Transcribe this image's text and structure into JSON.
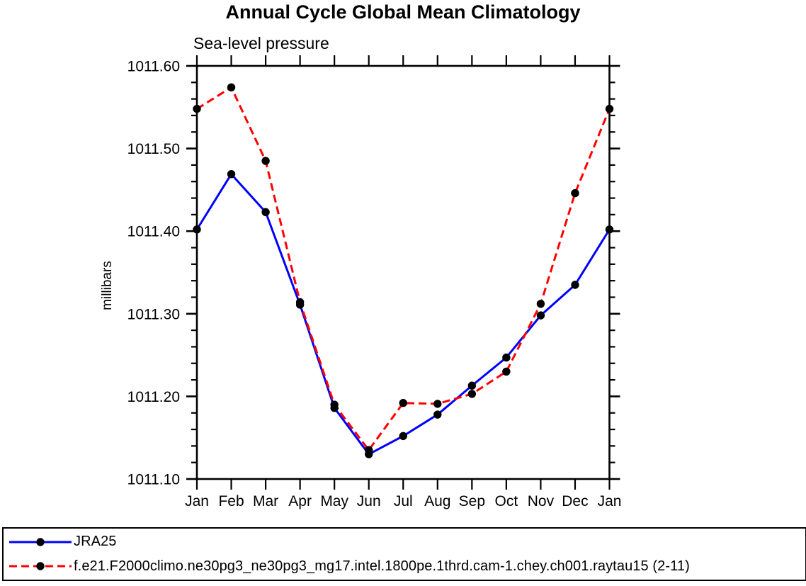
{
  "chart_data": {
    "type": "line",
    "title": "Annual Cycle Global Mean Climatology",
    "subtitle": "Sea-level pressure",
    "ylabel": "millibars",
    "x_categories": [
      "Jan",
      "Feb",
      "Mar",
      "Apr",
      "May",
      "Jun",
      "Jul",
      "Aug",
      "Sep",
      "Oct",
      "Nov",
      "Dec",
      "Jan"
    ],
    "ylim": [
      1011.1,
      1011.6
    ],
    "y_major_step": 0.1,
    "y_minor_step": 0.02,
    "y_tick_labels": [
      "1011.10",
      "1011.20",
      "1011.30",
      "1011.40",
      "1011.50",
      "1011.60"
    ],
    "grid": false,
    "legend_position": "bottom-outside-box",
    "axis_color": "#000000",
    "series": [
      {
        "name": "JRA25",
        "color": "#0000ff",
        "line_style": "solid",
        "marker": "filled-circle",
        "marker_color": "#000000",
        "values": [
          1011.402,
          1011.469,
          1011.423,
          1011.311,
          1011.186,
          1011.13,
          1011.152,
          1011.178,
          1011.213,
          1011.247,
          1011.298,
          1011.335,
          1011.402
        ]
      },
      {
        "name": "f.e21.F2000climo.ne30pg3_ne30pg3_mg17.intel.1800pe.1thrd.cam-1.chey.ch001.raytau15 (2-11)",
        "color": "#ff0000",
        "line_style": "dashed",
        "marker": "filled-circle",
        "marker_color": "#000000",
        "values": [
          1011.548,
          1011.574,
          1011.485,
          1011.314,
          1011.19,
          1011.135,
          1011.192,
          1011.191,
          1011.203,
          1011.23,
          1011.312,
          1011.446,
          1011.548
        ]
      }
    ]
  }
}
